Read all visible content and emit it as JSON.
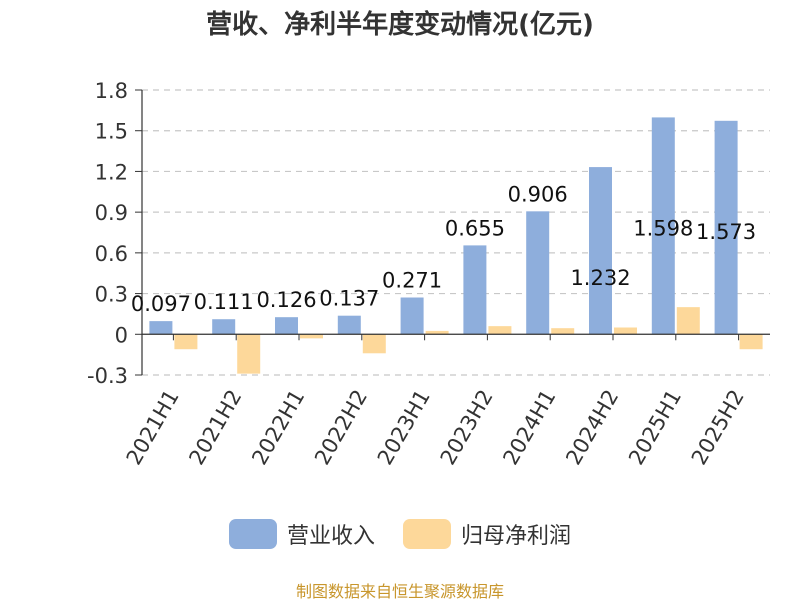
{
  "chart_data": {
    "type": "bar",
    "title": "营收、净利半年度变动情况(亿元)",
    "categories": [
      "2021H1",
      "2021H2",
      "2022H1",
      "2022H2",
      "2023H1",
      "2023H2",
      "2024H1",
      "2024H2",
      "2025H1",
      "2025H2"
    ],
    "series": [
      {
        "name": "营业收入",
        "color": "#8eaedc",
        "values": [
          0.097,
          0.111,
          0.126,
          0.137,
          0.271,
          0.655,
          0.906,
          1.232,
          1.598,
          1.573
        ],
        "data_labels": [
          "0.097",
          "0.111",
          "0.126",
          "0.137",
          "0.271",
          "0.655",
          "0.906",
          "1.232",
          "1.598",
          "1.573"
        ]
      },
      {
        "name": "归母净利润",
        "color": "#fdd89a",
        "values": [
          -0.11,
          -0.29,
          -0.03,
          -0.14,
          0.025,
          0.06,
          0.045,
          0.05,
          0.2,
          -0.11
        ]
      }
    ],
    "yticks": [
      "-0.3",
      "0",
      "0.3",
      "0.6",
      "0.9",
      "1.2",
      "1.5",
      "1.8"
    ],
    "ylim": [
      -0.3,
      1.8
    ],
    "grid": true,
    "legend_position": "bottom"
  },
  "source_note": "制图数据来自恒生聚源数据库"
}
